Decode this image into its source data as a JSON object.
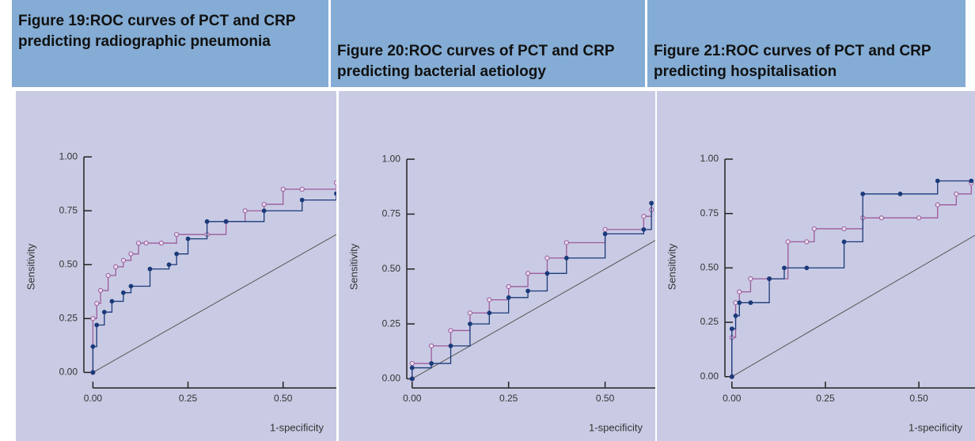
{
  "columns": [
    {
      "title": "Figure 19:ROC curves of PCT and CRP predicting radiographic pneumonia",
      "chart": {
        "type": "line",
        "ylabel": "Sensitivity",
        "xlabel": "1-specificity",
        "xlim": [
          -0.03,
          0.64
        ],
        "ylim": [
          -0.05,
          1.03
        ],
        "xticks": [
          {
            "value": 0,
            "label": "0.00"
          },
          {
            "value": 0.25,
            "label": "0.25"
          },
          {
            "value": 0.5,
            "label": "0.50"
          }
        ],
        "yticks": [
          {
            "value": 0,
            "label": "0.00"
          },
          {
            "value": 0.25,
            "label": "0.25"
          },
          {
            "value": 0.5,
            "label": "0.50"
          },
          {
            "value": 0.75,
            "label": "0.75"
          },
          {
            "value": 1,
            "label": "1.00"
          }
        ],
        "series": [
          {
            "color": "#555555",
            "x": [
              0,
              1
            ],
            "values": [
              0,
              1
            ]
          },
          {
            "color": "#9c5a9c",
            "x": [
              0,
              0,
              0.01,
              0.02,
              0.04,
              0.06,
              0.08,
              0.1,
              0.12,
              0.14,
              0.18,
              0.22,
              0.3,
              0.35,
              0.4,
              0.45,
              0.5,
              0.55,
              0.64
            ],
            "values": [
              0,
              0.25,
              0.32,
              0.38,
              0.45,
              0.49,
              0.52,
              0.55,
              0.6,
              0.6,
              0.6,
              0.64,
              0.64,
              0.7,
              0.75,
              0.78,
              0.85,
              0.85,
              0.88
            ]
          },
          {
            "color": "#1a3a7a",
            "x": [
              0,
              0,
              0.01,
              0.03,
              0.05,
              0.08,
              0.1,
              0.15,
              0.2,
              0.22,
              0.25,
              0.3,
              0.35,
              0.45,
              0.55,
              0.64
            ],
            "values": [
              0,
              0.12,
              0.22,
              0.28,
              0.33,
              0.37,
              0.4,
              0.48,
              0.5,
              0.55,
              0.62,
              0.7,
              0.7,
              0.75,
              0.8,
              0.83
            ]
          }
        ]
      }
    },
    {
      "title": "Figure 20:ROC curves of PCT and CRP predicting bacterial aetiology",
      "chart": {
        "type": "line",
        "ylabel": "Sensitivity",
        "xlabel": "1-specificity",
        "xlim": [
          -0.02,
          0.63
        ],
        "ylim": [
          -0.02,
          1.04
        ],
        "xticks": [
          {
            "value": 0,
            "label": "0.00"
          },
          {
            "value": 0.25,
            "label": "0.25"
          },
          {
            "value": 0.5,
            "label": "0.50"
          }
        ],
        "yticks": [
          {
            "value": 0,
            "label": "0.00"
          },
          {
            "value": 0.25,
            "label": "0.25"
          },
          {
            "value": 0.5,
            "label": "0.50"
          },
          {
            "value": 0.75,
            "label": "0.75"
          },
          {
            "value": 1,
            "label": "1.00"
          }
        ],
        "series": [
          {
            "color": "#555555",
            "x": [
              0,
              1
            ],
            "values": [
              0,
              1
            ]
          },
          {
            "color": "#9c5a9c",
            "x": [
              0,
              0,
              0.05,
              0.1,
              0.15,
              0.2,
              0.25,
              0.3,
              0.35,
              0.4,
              0.5,
              0.6,
              0.62
            ],
            "values": [
              0,
              0.07,
              0.15,
              0.22,
              0.3,
              0.36,
              0.42,
              0.48,
              0.55,
              0.62,
              0.68,
              0.74,
              0.77
            ]
          },
          {
            "color": "#1a3a7a",
            "x": [
              0,
              0,
              0.05,
              0.1,
              0.15,
              0.2,
              0.25,
              0.3,
              0.35,
              0.4,
              0.5,
              0.6,
              0.62
            ],
            "values": [
              0,
              0.05,
              0.07,
              0.15,
              0.25,
              0.3,
              0.37,
              0.4,
              0.48,
              0.55,
              0.66,
              0.68,
              0.8
            ]
          }
        ]
      }
    },
    {
      "title": "Figure 21:ROC curves of PCT and CRP predicting hospitalisation",
      "chart": {
        "type": "line",
        "ylabel": "Sensitivity",
        "xlabel": "1-specificity",
        "xlim": [
          -0.025,
          0.65
        ],
        "ylim": [
          -0.03,
          1.04
        ],
        "xticks": [
          {
            "value": 0,
            "label": "0.00"
          },
          {
            "value": 0.25,
            "label": "0.25"
          },
          {
            "value": 0.5,
            "label": "0.50"
          }
        ],
        "yticks": [
          {
            "value": 0,
            "label": "0.00"
          },
          {
            "value": 0.25,
            "label": "0.25"
          },
          {
            "value": 0.5,
            "label": "0.50"
          },
          {
            "value": 0.75,
            "label": "0.75"
          },
          {
            "value": 1,
            "label": "1.00"
          }
        ],
        "series": [
          {
            "color": "#555555",
            "x": [
              0,
              1
            ],
            "values": [
              0,
              1
            ]
          },
          {
            "color": "#9c5a9c",
            "x": [
              0,
              0,
              0.01,
              0.02,
              0.05,
              0.1,
              0.15,
              0.2,
              0.22,
              0.3,
              0.35,
              0.4,
              0.5,
              0.55,
              0.6,
              0.64
            ],
            "values": [
              0,
              0.18,
              0.34,
              0.39,
              0.45,
              0.45,
              0.62,
              0.62,
              0.68,
              0.68,
              0.73,
              0.73,
              0.73,
              0.79,
              0.84,
              0.89
            ]
          },
          {
            "color": "#1a3a7a",
            "x": [
              0,
              0,
              0.01,
              0.02,
              0.05,
              0.1,
              0.14,
              0.2,
              0.3,
              0.35,
              0.45,
              0.55,
              0.64
            ],
            "values": [
              0,
              0.22,
              0.28,
              0.34,
              0.34,
              0.45,
              0.5,
              0.5,
              0.62,
              0.84,
              0.84,
              0.9,
              0.9
            ]
          }
        ]
      }
    }
  ]
}
